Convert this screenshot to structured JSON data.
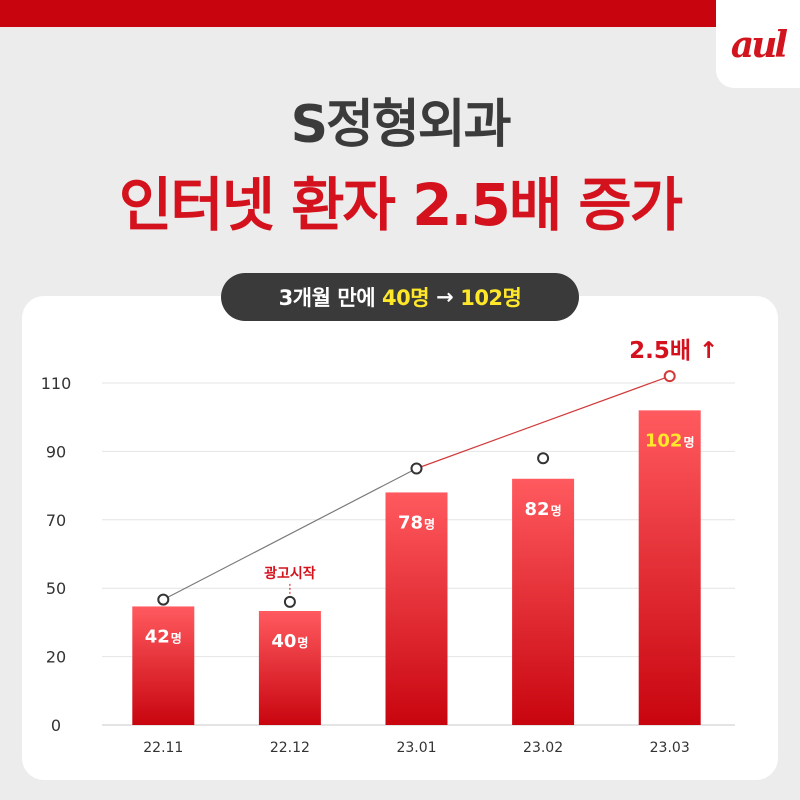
{
  "logo": {
    "text": "aul"
  },
  "headline": {
    "line1": "S정형외과",
    "line2": "인터넷 환자 2.5배 증가"
  },
  "pill": {
    "part1": "3개월",
    "part2": "만에",
    "part3": "40명",
    "arrow": "→",
    "part4": "102명"
  },
  "colors": {
    "accent": "#d4121d",
    "bar_top": "#ff5a5f",
    "bar_bottom": "#c8050f",
    "highlight": "#ffe82a"
  },
  "chart_data": {
    "type": "bar",
    "categories": [
      "22.11",
      "22.12",
      "23.01",
      "23.02",
      "23.03"
    ],
    "values": [
      42,
      40,
      78,
      82,
      102
    ],
    "bar_labels": [
      "42",
      "40",
      "78",
      "82",
      "102"
    ],
    "unit": "명",
    "yticks": [
      0,
      20,
      50,
      70,
      90,
      110
    ],
    "ylim": [
      0,
      110
    ],
    "grid": true,
    "trend_values": [
      45,
      44,
      85,
      88,
      112
    ],
    "trend_line_points": [
      0,
      2,
      4
    ],
    "annotations": [
      {
        "category": "22.12",
        "text": "광고시작"
      },
      {
        "category": "23.03",
        "text": "2.5배 ↑"
      }
    ],
    "title": "",
    "xlabel": "",
    "ylabel": ""
  }
}
